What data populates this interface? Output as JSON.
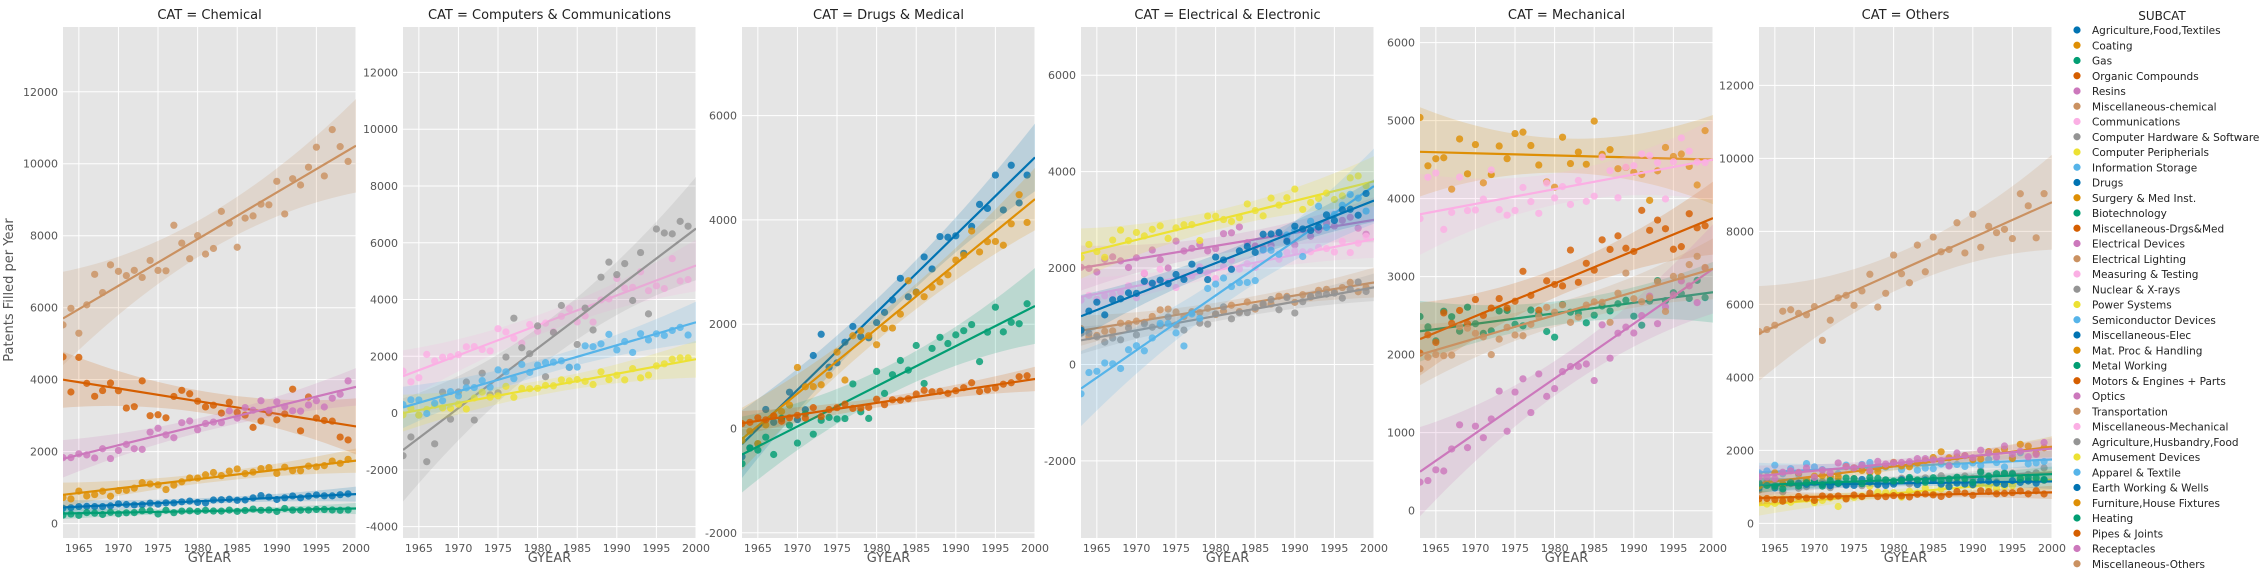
{
  "figure": {
    "ylabel": "Patents Filled per Year",
    "xlabel": "GYEAR",
    "legend_title": "SUBCAT",
    "legend_placement": "right",
    "grid": true,
    "panel_bg": "#e5e5e5",
    "grid_color": "#ffffff"
  },
  "chart_data": [
    {
      "type": "scatter",
      "title": "CAT = Chemical",
      "xlim": [
        1963,
        2000
      ],
      "ylim": [
        -400,
        13800
      ],
      "xticks": [
        1965,
        1970,
        1975,
        1980,
        1985,
        1990,
        1995,
        2000
      ],
      "yticks": [
        0,
        2000,
        4000,
        6000,
        8000,
        10000,
        12000
      ],
      "series": [
        {
          "name": "Agriculture,Food,Textiles",
          "color": "#0173b2",
          "start": 450,
          "end": 820,
          "noise": 70,
          "ci": 80
        },
        {
          "name": "Coating",
          "color": "#de8f05",
          "start": 800,
          "end": 1750,
          "noise": 180,
          "ci": 130
        },
        {
          "name": "Gas",
          "color": "#029e73",
          "start": 280,
          "end": 420,
          "noise": 60,
          "ci": 60
        },
        {
          "name": "Organic Compounds",
          "color": "#d55e00",
          "start": 4000,
          "end": 2700,
          "noise": 700,
          "ci": 300
        },
        {
          "name": "Resins",
          "color": "#cc78bc",
          "start": 1800,
          "end": 3800,
          "noise": 350,
          "ci": 200
        },
        {
          "name": "Miscellaneous-chemical",
          "color": "#ca9161",
          "start": 5700,
          "end": 10500,
          "noise": 900,
          "ci": 500
        }
      ]
    },
    {
      "type": "scatter",
      "title": "CAT = Computers & Communications",
      "xlim": [
        1963,
        2000
      ],
      "ylim": [
        -4400,
        13600
      ],
      "xticks": [
        1965,
        1970,
        1975,
        1980,
        1985,
        1990,
        1995,
        2000
      ],
      "yticks": [
        -4000,
        -2000,
        0,
        2000,
        4000,
        6000,
        8000,
        10000,
        12000
      ],
      "series": [
        {
          "name": "Communications",
          "color": "#fbafe4",
          "start": 1300,
          "end": 5200,
          "noise": 700,
          "ci": 350
        },
        {
          "name": "Computer Hardware & Software",
          "color": "#949494",
          "start": -1300,
          "end": 6500,
          "noise": 1600,
          "ci": 700
        },
        {
          "name": "Computer Peripherials",
          "color": "#ece133",
          "start": 0,
          "end": 1900,
          "noise": 300,
          "ci": 250
        },
        {
          "name": "Information Storage",
          "color": "#56b4e9",
          "start": 200,
          "end": 3200,
          "noise": 450,
          "ci": 280
        }
      ]
    },
    {
      "type": "scatter",
      "title": "CAT = Drugs & Medical",
      "xlim": [
        1963,
        2000
      ],
      "ylim": [
        -2100,
        7700
      ],
      "xticks": [
        1965,
        1970,
        1975,
        1980,
        1985,
        1990,
        1995,
        2000
      ],
      "yticks": [
        -2000,
        0,
        2000,
        4000,
        6000
      ],
      "series": [
        {
          "name": "Drugs",
          "color": "#0173b2",
          "start": -300,
          "end": 5200,
          "noise": 600,
          "ci": 250
        },
        {
          "name": "Surgery & Med Inst.",
          "color": "#de8f05",
          "start": -200,
          "end": 4400,
          "noise": 500,
          "ci": 230
        },
        {
          "name": "Biotechnology",
          "color": "#029e73",
          "start": -500,
          "end": 2350,
          "noise": 550,
          "ci": 280
        },
        {
          "name": "Miscellaneous-Drgs&Med",
          "color": "#d55e00",
          "start": 100,
          "end": 950,
          "noise": 120,
          "ci": 90
        }
      ]
    },
    {
      "type": "scatter",
      "title": "CAT = Electrical & Electronic",
      "xlim": [
        1963,
        2000
      ],
      "ylim": [
        -3600,
        7000
      ],
      "xticks": [
        1965,
        1970,
        1975,
        1980,
        1985,
        1990,
        1995,
        2000
      ],
      "yticks": [
        -2000,
        0,
        2000,
        4000,
        6000
      ],
      "series": [
        {
          "name": "Electrical Devices",
          "color": "#cc78bc",
          "start": 2000,
          "end": 3000,
          "noise": 350,
          "ci": 180
        },
        {
          "name": "Electrical Lighting",
          "color": "#ca9161",
          "start": 700,
          "end": 1700,
          "noise": 200,
          "ci": 120
        },
        {
          "name": "Measuring & Testing",
          "color": "#fbafe4",
          "start": 1400,
          "end": 2600,
          "noise": 300,
          "ci": 150
        },
        {
          "name": "Nuclear & X-rays",
          "color": "#949494",
          "start": 500,
          "end": 1600,
          "noise": 200,
          "ci": 110
        },
        {
          "name": "Power Systems",
          "color": "#ece133",
          "start": 2300,
          "end": 3800,
          "noise": 400,
          "ci": 200
        },
        {
          "name": "Semiconductor Devices",
          "color": "#56b4e9",
          "start": -500,
          "end": 3700,
          "noise": 500,
          "ci": 300
        },
        {
          "name": "Miscellaneous-Elec",
          "color": "#0173b2",
          "start": 1000,
          "end": 3400,
          "noise": 350,
          "ci": 170
        }
      ]
    },
    {
      "type": "scatter",
      "title": "CAT = Mechanical",
      "xlim": [
        1963,
        2000
      ],
      "ylim": [
        -350,
        6200
      ],
      "xticks": [
        1965,
        1970,
        1975,
        1980,
        1985,
        1990,
        1995,
        2000
      ],
      "yticks": [
        0,
        1000,
        2000,
        3000,
        4000,
        5000,
        6000
      ],
      "series": [
        {
          "name": "Mat. Proc & Handling",
          "color": "#de8f05",
          "start": 4600,
          "end": 4500,
          "noise": 500,
          "ci": 220
        },
        {
          "name": "Metal Working",
          "color": "#029e73",
          "start": 2300,
          "end": 2800,
          "noise": 300,
          "ci": 150
        },
        {
          "name": "Motors & Engines + Parts",
          "color": "#d55e00",
          "start": 2200,
          "end": 3750,
          "noise": 400,
          "ci": 180
        },
        {
          "name": "Optics",
          "color": "#cc78bc",
          "start": 500,
          "end": 3100,
          "noise": 400,
          "ci": 220
        },
        {
          "name": "Transportation",
          "color": "#ca9161",
          "start": 2000,
          "end": 3100,
          "noise": 300,
          "ci": 150
        },
        {
          "name": "Miscellaneous-Mechanical",
          "color": "#fbafe4",
          "start": 3800,
          "end": 4500,
          "noise": 450,
          "ci": 200
        }
      ]
    },
    {
      "type": "scatter",
      "title": "CAT = Others",
      "xlim": [
        1963,
        2000
      ],
      "ylim": [
        -400,
        13600
      ],
      "xticks": [
        1965,
        1970,
        1975,
        1980,
        1985,
        1990,
        1995,
        2000
      ],
      "yticks": [
        0,
        2000,
        4000,
        6000,
        8000,
        10000,
        12000
      ],
      "series": [
        {
          "name": "Agriculture,Husbandry,Food",
          "color": "#949494",
          "start": 1000,
          "end": 1400,
          "noise": 180,
          "ci": 100
        },
        {
          "name": "Amusement Devices",
          "color": "#ece133",
          "start": 500,
          "end": 1200,
          "noise": 200,
          "ci": 110
        },
        {
          "name": "Apparel & Textile",
          "color": "#56b4e9",
          "start": 1400,
          "end": 1750,
          "noise": 200,
          "ci": 100
        },
        {
          "name": "Earth Working & Wells",
          "color": "#0173b2",
          "start": 1050,
          "end": 1150,
          "noise": 120,
          "ci": 80
        },
        {
          "name": "Furniture,House Fixtures",
          "color": "#de8f05",
          "start": 1100,
          "end": 2100,
          "noise": 250,
          "ci": 110
        },
        {
          "name": "Heating",
          "color": "#029e73",
          "start": 1050,
          "end": 1350,
          "noise": 150,
          "ci": 80
        },
        {
          "name": "Pipes & Joints",
          "color": "#d55e00",
          "start": 700,
          "end": 850,
          "noise": 100,
          "ci": 70
        },
        {
          "name": "Receptacles",
          "color": "#cc78bc",
          "start": 1300,
          "end": 2050,
          "noise": 220,
          "ci": 110
        },
        {
          "name": "Miscellaneous-Others",
          "color": "#ca9161",
          "start": 5200,
          "end": 8800,
          "noise": 900,
          "ci": 500
        }
      ]
    }
  ],
  "legend": [
    {
      "label": "Agriculture,Food,Textiles",
      "color": "#0173b2"
    },
    {
      "label": "Coating",
      "color": "#de8f05"
    },
    {
      "label": "Gas",
      "color": "#029e73"
    },
    {
      "label": "Organic Compounds",
      "color": "#d55e00"
    },
    {
      "label": "Resins",
      "color": "#cc78bc"
    },
    {
      "label": "Miscellaneous-chemical",
      "color": "#ca9161"
    },
    {
      "label": "Communications",
      "color": "#fbafe4"
    },
    {
      "label": "Computer Hardware & Software",
      "color": "#949494"
    },
    {
      "label": "Computer Peripherials",
      "color": "#ece133"
    },
    {
      "label": "Information Storage",
      "color": "#56b4e9"
    },
    {
      "label": "Drugs",
      "color": "#0173b2"
    },
    {
      "label": "Surgery & Med Inst.",
      "color": "#de8f05"
    },
    {
      "label": "Biotechnology",
      "color": "#029e73"
    },
    {
      "label": "Miscellaneous-Drgs&Med",
      "color": "#d55e00"
    },
    {
      "label": "Electrical Devices",
      "color": "#cc78bc"
    },
    {
      "label": "Electrical Lighting",
      "color": "#ca9161"
    },
    {
      "label": "Measuring & Testing",
      "color": "#fbafe4"
    },
    {
      "label": "Nuclear & X-rays",
      "color": "#949494"
    },
    {
      "label": "Power Systems",
      "color": "#ece133"
    },
    {
      "label": "Semiconductor Devices",
      "color": "#56b4e9"
    },
    {
      "label": "Miscellaneous-Elec",
      "color": "#0173b2"
    },
    {
      "label": "Mat. Proc & Handling",
      "color": "#de8f05"
    },
    {
      "label": "Metal Working",
      "color": "#029e73"
    },
    {
      "label": "Motors & Engines + Parts",
      "color": "#d55e00"
    },
    {
      "label": "Optics",
      "color": "#cc78bc"
    },
    {
      "label": "Transportation",
      "color": "#ca9161"
    },
    {
      "label": "Miscellaneous-Mechanical",
      "color": "#fbafe4"
    },
    {
      "label": "Agriculture,Husbandry,Food",
      "color": "#949494"
    },
    {
      "label": "Amusement Devices",
      "color": "#ece133"
    },
    {
      "label": "Apparel & Textile",
      "color": "#56b4e9"
    },
    {
      "label": "Earth Working & Wells",
      "color": "#0173b2"
    },
    {
      "label": "Furniture,House Fixtures",
      "color": "#de8f05"
    },
    {
      "label": "Heating",
      "color": "#029e73"
    },
    {
      "label": "Pipes & Joints",
      "color": "#d55e00"
    },
    {
      "label": "Receptacles",
      "color": "#cc78bc"
    },
    {
      "label": "Miscellaneous-Others",
      "color": "#ca9161"
    }
  ]
}
